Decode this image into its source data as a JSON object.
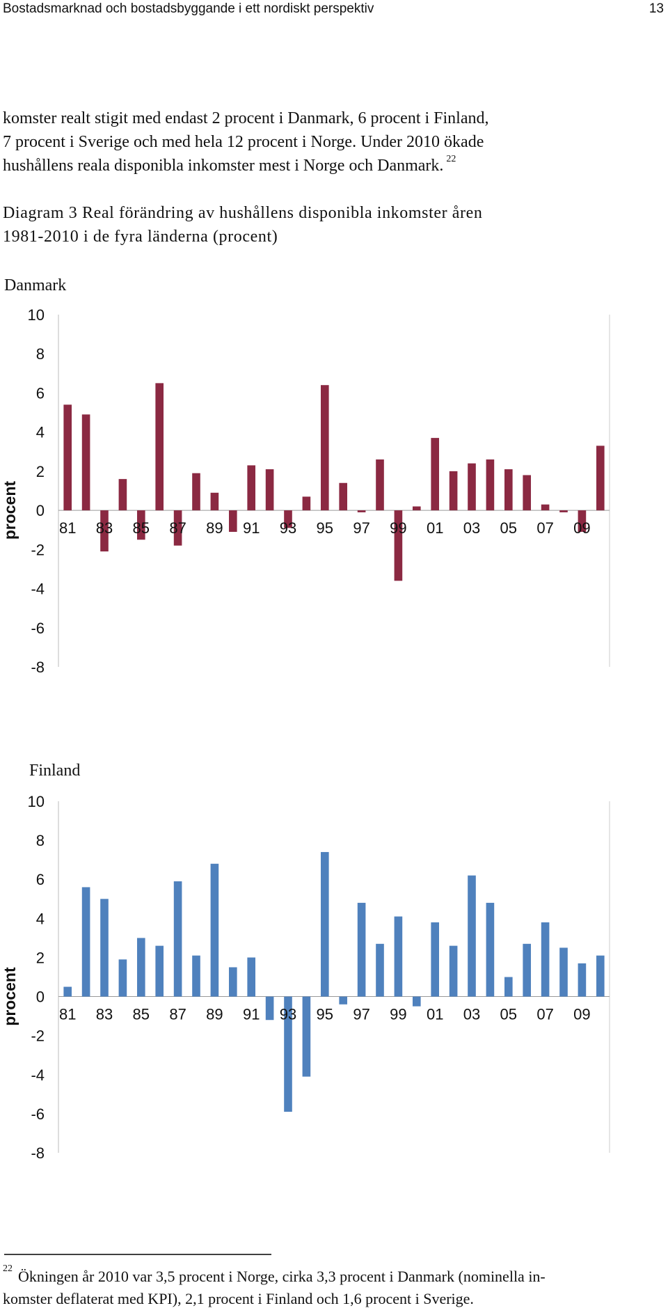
{
  "header": {
    "title": "Bostadsmarknad och bostadsbyggande i ett nordiskt perspektiv",
    "page_number": "13"
  },
  "body": {
    "lines": [
      "komster realt stigit med endast 2 procent i Danmark, 6 procent i Finland,",
      "7 procent i Sverige och med hela 12 procent i Norge. Under 2010 ökade",
      "hushållens reala disponibla inkomster mest i Norge och Danmark."
    ],
    "footnote_ref": "22"
  },
  "caption": {
    "lines": [
      "Diagram 3 Real förändring av hushållens disponibla inkomster åren",
      "1981-2010 i de fyra länderna (procent)"
    ]
  },
  "chart_data": [
    {
      "type": "bar",
      "title": "Danmark",
      "ylabel": "procent",
      "color": "#8b2942",
      "categories": [
        "81",
        null,
        "83",
        null,
        "85",
        null,
        "87",
        null,
        "89",
        null,
        "91",
        null,
        "93",
        null,
        "95",
        null,
        "97",
        null,
        "99",
        null,
        "01",
        null,
        "03",
        null,
        "05",
        null,
        "07",
        null,
        "09",
        null
      ],
      "values": [
        5.4,
        4.9,
        -2.1,
        1.6,
        -1.5,
        6.5,
        -1.8,
        1.9,
        0.9,
        -1.1,
        2.3,
        2.1,
        -0.9,
        0.7,
        6.4,
        1.4,
        -0.1,
        2.6,
        -3.6,
        0.2,
        3.7,
        2.0,
        2.4,
        2.6,
        2.1,
        1.8,
        0.3,
        -0.1,
        -1.1,
        3.3
      ],
      "ylim": [
        -8,
        10
      ],
      "yticks": [
        -8,
        -6,
        -4,
        -2,
        0,
        2,
        4,
        6,
        8,
        10
      ]
    },
    {
      "type": "bar",
      "title": "Finland",
      "ylabel": "procent",
      "color": "#4f81bd",
      "categories": [
        "81",
        null,
        "83",
        null,
        "85",
        null,
        "87",
        null,
        "89",
        null,
        "91",
        null,
        "93",
        null,
        "95",
        null,
        "97",
        null,
        "99",
        null,
        "01",
        null,
        "03",
        null,
        "05",
        null,
        "07",
        null,
        "09",
        null
      ],
      "values": [
        0.5,
        5.6,
        5.0,
        1.9,
        3.0,
        2.6,
        5.9,
        2.1,
        6.8,
        1.5,
        2.0,
        -1.2,
        -5.9,
        -4.1,
        7.4,
        -0.4,
        4.8,
        2.7,
        4.1,
        -0.5,
        3.8,
        2.6,
        6.2,
        4.8,
        1.0,
        2.7,
        3.8,
        2.5,
        1.7,
        2.1
      ],
      "ylim": [
        -8,
        10
      ],
      "yticks": [
        -8,
        -6,
        -4,
        -2,
        0,
        2,
        4,
        6,
        8,
        10
      ]
    }
  ],
  "footnote": {
    "number": "22",
    "lines": [
      "Ökningen år 2010 var 3,5 procent i Norge, cirka 3,3 procent i Danmark (nominella in-",
      "komster deflaterat med KPI), 2,1 procent i Finland och 1,6 procent i Sverige."
    ]
  }
}
